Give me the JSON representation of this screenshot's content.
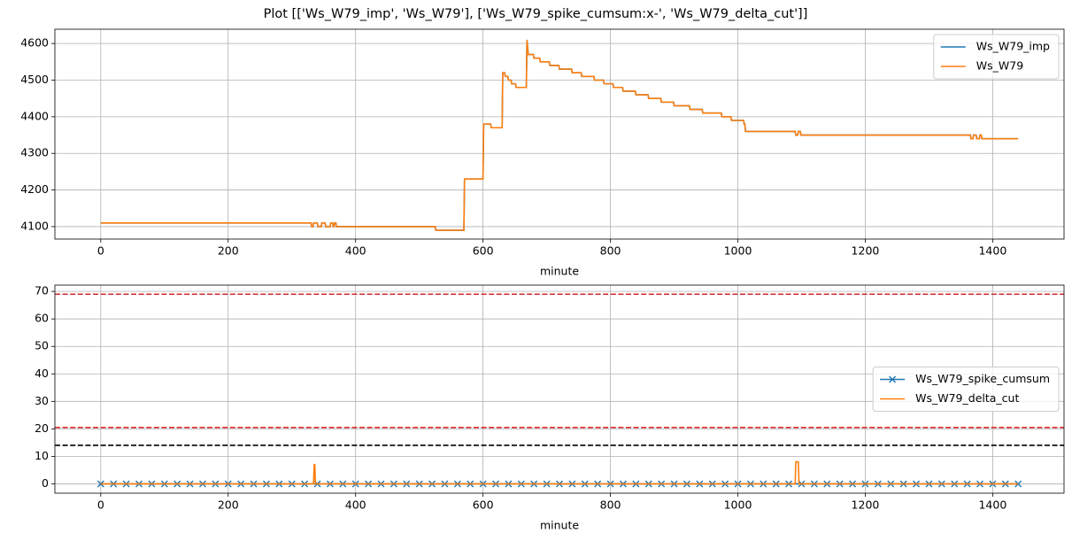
{
  "title": "Plot [['Ws_W79_imp', 'Ws_W79'], ['Ws_W79_spike_cumsum:x-', 'Ws_W79_delta_cut']]",
  "chart_data": [
    {
      "type": "line",
      "xlabel": "minute",
      "xlim": [
        -72,
        1512
      ],
      "ylim": [
        4066,
        4639
      ],
      "xticks": [
        0,
        200,
        400,
        600,
        800,
        1000,
        1200,
        1400
      ],
      "yticks": [
        4100,
        4200,
        4300,
        4400,
        4500,
        4600
      ],
      "grid": true,
      "legend": "upper right",
      "x": [
        0,
        330,
        331,
        333,
        334,
        340,
        341,
        346,
        347,
        352,
        353,
        360,
        361,
        364,
        365,
        366,
        367,
        369,
        370,
        525,
        526,
        570,
        571,
        600,
        601,
        612,
        613,
        630,
        631,
        634,
        635,
        639,
        640,
        644,
        645,
        651,
        652,
        668,
        669,
        671,
        679,
        680,
        689,
        690,
        704,
        705,
        719,
        720,
        739,
        740,
        754,
        755,
        774,
        775,
        789,
        790,
        804,
        805,
        819,
        820,
        839,
        840,
        859,
        860,
        879,
        880,
        899,
        900,
        924,
        925,
        944,
        945,
        974,
        975,
        989,
        990,
        1009,
        1010,
        1011,
        1012,
        1090,
        1091,
        1094,
        1095,
        1098,
        1099,
        1365,
        1366,
        1369,
        1370,
        1374,
        1375,
        1379,
        1380,
        1382,
        1383,
        1440
      ],
      "series": [
        {
          "name": "Ws_W79_imp",
          "color": "#1f77b4",
          "values": [
            4110,
            4110,
            4100,
            4100,
            4110,
            4110,
            4100,
            4100,
            4110,
            4110,
            4100,
            4100,
            4110,
            4110,
            4100,
            4100,
            4110,
            4110,
            4100,
            4100,
            4090,
            4090,
            4230,
            4230,
            4380,
            4380,
            4370,
            4370,
            4520,
            4520,
            4510,
            4510,
            4500,
            4500,
            4490,
            4490,
            4480,
            4480,
            4610,
            4570,
            4570,
            4560,
            4560,
            4550,
            4550,
            4540,
            4540,
            4530,
            4530,
            4520,
            4520,
            4510,
            4510,
            4500,
            4500,
            4490,
            4490,
            4480,
            4480,
            4470,
            4470,
            4460,
            4460,
            4450,
            4450,
            4440,
            4440,
            4430,
            4430,
            4420,
            4420,
            4410,
            4410,
            4400,
            4400,
            4390,
            4390,
            4380,
            4380,
            4360,
            4360,
            4350,
            4350,
            4360,
            4360,
            4350,
            4350,
            4340,
            4340,
            4350,
            4350,
            4340,
            4340,
            4350,
            4350,
            4340,
            4340
          ]
        },
        {
          "name": "Ws_W79",
          "color": "#ff7f0e",
          "values": [
            4110,
            4110,
            4100,
            4100,
            4110,
            4110,
            4100,
            4100,
            4110,
            4110,
            4100,
            4100,
            4110,
            4110,
            4100,
            4100,
            4110,
            4110,
            4100,
            4100,
            4090,
            4090,
            4230,
            4230,
            4380,
            4380,
            4370,
            4370,
            4520,
            4520,
            4510,
            4510,
            4500,
            4500,
            4490,
            4490,
            4480,
            4480,
            4610,
            4570,
            4570,
            4560,
            4560,
            4550,
            4550,
            4540,
            4540,
            4530,
            4530,
            4520,
            4520,
            4510,
            4510,
            4500,
            4500,
            4490,
            4490,
            4480,
            4480,
            4470,
            4470,
            4460,
            4460,
            4450,
            4450,
            4440,
            4440,
            4430,
            4430,
            4420,
            4420,
            4410,
            4410,
            4400,
            4400,
            4390,
            4390,
            4380,
            4380,
            4360,
            4360,
            4350,
            4350,
            4360,
            4360,
            4350,
            4350,
            4340,
            4340,
            4350,
            4350,
            4340,
            4340,
            4350,
            4350,
            4340,
            4340
          ]
        }
      ]
    },
    {
      "type": "line",
      "xlabel": "minute",
      "xlim": [
        -72,
        1512
      ],
      "ylim": [
        -3.4,
        72.3
      ],
      "xticks": [
        0,
        200,
        400,
        600,
        800,
        1000,
        1200,
        1400
      ],
      "yticks": [
        0,
        10,
        20,
        30,
        40,
        50,
        60,
        70
      ],
      "grid": true,
      "legend": "center right",
      "hlines": [
        {
          "value": 69,
          "color": "#d62728"
        },
        {
          "value": 20.5,
          "color": "#d62728"
        },
        {
          "value": 14,
          "color": "#000000"
        }
      ],
      "series": [
        {
          "name": "Ws_W79_spike_cumsum",
          "color": "#1f77b4",
          "marker": "x",
          "x": [
            0,
            20,
            40,
            60,
            80,
            100,
            120,
            140,
            160,
            180,
            200,
            220,
            240,
            260,
            280,
            300,
            320,
            340,
            360,
            380,
            400,
            420,
            440,
            460,
            480,
            500,
            520,
            540,
            560,
            580,
            600,
            620,
            640,
            660,
            680,
            700,
            720,
            740,
            760,
            780,
            800,
            820,
            840,
            860,
            880,
            900,
            920,
            940,
            960,
            980,
            1000,
            1020,
            1040,
            1060,
            1080,
            1100,
            1120,
            1140,
            1160,
            1180,
            1200,
            1220,
            1240,
            1260,
            1280,
            1300,
            1320,
            1340,
            1360,
            1380,
            1400,
            1420,
            1440
          ],
          "values": [
            0,
            0,
            0,
            0,
            0,
            0,
            0,
            0,
            0,
            0,
            0,
            0,
            0,
            0,
            0,
            0,
            0,
            0,
            0,
            0,
            0,
            0,
            0,
            0,
            0,
            0,
            0,
            0,
            0,
            0,
            0,
            0,
            0,
            0,
            0,
            0,
            0,
            0,
            0,
            0,
            0,
            0,
            0,
            0,
            0,
            0,
            0,
            0,
            0,
            0,
            0,
            0,
            0,
            0,
            0,
            0,
            0,
            0,
            0,
            0,
            0,
            0,
            0,
            0,
            0,
            0,
            0,
            0,
            0,
            0,
            0,
            0,
            0
          ]
        },
        {
          "name": "Ws_W79_delta_cut",
          "color": "#ff7f0e",
          "x": [
            0,
            334,
            335,
            336,
            337,
            1090,
            1091,
            1095,
            1096,
            1440
          ],
          "values": [
            0,
            0,
            7,
            7,
            0,
            0,
            8,
            8,
            0,
            0
          ]
        }
      ]
    }
  ]
}
